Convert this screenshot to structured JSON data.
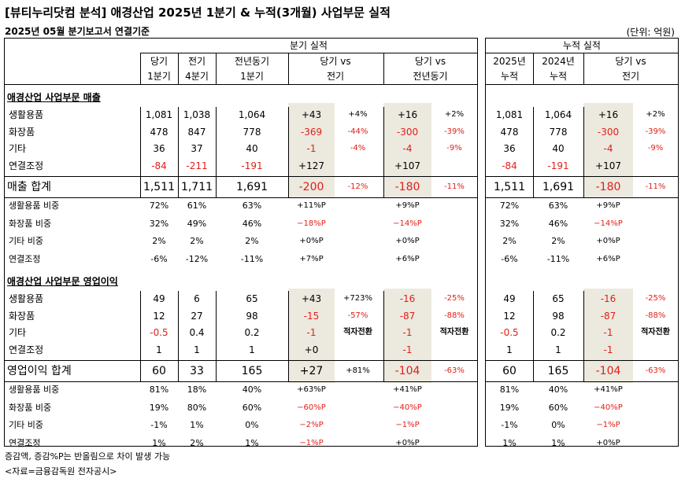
{
  "title": "[뷰티누리닷컴 분석] 애경산업 2025년 1분기 & 누적(3개월) 사업부문 실적",
  "subtitle": "2025년 05월 분기보고서 연결기준",
  "unit": "(단위: 억원)",
  "colors": {
    "negative": "#e1201a",
    "highlight": "#ece9df"
  },
  "headers": {
    "quarter_group": "분기 실적",
    "cum_group": "누적 실적",
    "cols": [
      {
        "l1": "당기",
        "l2": "1분기"
      },
      {
        "l1": "전기",
        "l2": "4분기"
      },
      {
        "l1": "전년동기",
        "l2": "1분기"
      },
      {
        "l1": "당기 vs",
        "l2": "전기"
      },
      {
        "l1": "당기 vs",
        "l2": "전년동기"
      }
    ],
    "cum_cols": [
      {
        "l1": "2025년",
        "l2": "누적"
      },
      {
        "l1": "2024년",
        "l2": "누적"
      },
      {
        "l1": "당기 vs",
        "l2": "전기"
      }
    ]
  },
  "sections": [
    {
      "title": "애경산업 사업부문 매출",
      "rows": [
        {
          "label": "생활용품",
          "q": [
            "1,081",
            "1,038",
            "1,064"
          ],
          "vs_prev": [
            "+43",
            "+4%"
          ],
          "vs_yoy": [
            "+16",
            "+2%"
          ],
          "cum": [
            "1,081",
            "1,064"
          ],
          "cum_vs": [
            "+16",
            "+2%"
          ]
        },
        {
          "label": "화장품",
          "q": [
            "478",
            "847",
            "778"
          ],
          "vs_prev": [
            "-369",
            "-44%"
          ],
          "vs_yoy": [
            "-300",
            "-39%"
          ],
          "cum": [
            "478",
            "778"
          ],
          "cum_vs": [
            "-300",
            "-39%"
          ]
        },
        {
          "label": "기타",
          "q": [
            "36",
            "37",
            "40"
          ],
          "vs_prev": [
            "-1",
            "-4%"
          ],
          "vs_yoy": [
            "-4",
            "-9%"
          ],
          "cum": [
            "36",
            "40"
          ],
          "cum_vs": [
            "-4",
            "-9%"
          ]
        },
        {
          "label": "연결조정",
          "q": [
            "-84",
            "-211",
            "-191"
          ],
          "vs_prev": [
            "+127",
            ""
          ],
          "vs_yoy": [
            "+107",
            ""
          ],
          "cum": [
            "-84",
            "-191"
          ],
          "cum_vs": [
            "+107",
            ""
          ]
        }
      ],
      "total": {
        "label": "매출 합계",
        "q": [
          "1,511",
          "1,711",
          "1,691"
        ],
        "vs_prev": [
          "-200",
          "-12%"
        ],
        "vs_yoy": [
          "-180",
          "-11%"
        ],
        "cum": [
          "1,511",
          "1,691"
        ],
        "cum_vs": [
          "-180",
          "-11%"
        ]
      },
      "ratios": [
        {
          "label": "생활용품 비중",
          "q": [
            "72%",
            "61%",
            "63%"
          ],
          "vs_prev": "+11%P",
          "vs_yoy": "+9%P",
          "cum": [
            "72%",
            "63%"
          ],
          "cum_vs": "+9%P"
        },
        {
          "label": "화장품 비중",
          "q": [
            "32%",
            "49%",
            "46%"
          ],
          "vs_prev": "−18%P",
          "vs_yoy": "−14%P",
          "cum": [
            "32%",
            "46%"
          ],
          "cum_vs": "−14%P"
        },
        {
          "label": "기타 비중",
          "q": [
            "2%",
            "2%",
            "2%"
          ],
          "vs_prev": "+0%P",
          "vs_yoy": "+0%P",
          "cum": [
            "2%",
            "2%"
          ],
          "cum_vs": "+0%P"
        },
        {
          "label": "연결조정",
          "q": [
            "-6%",
            "-12%",
            "-11%"
          ],
          "vs_prev": "+7%P",
          "vs_yoy": "+6%P",
          "cum": [
            "-6%",
            "-11%"
          ],
          "cum_vs": "+6%P"
        }
      ]
    },
    {
      "title": "애경산업 사업부문 영업이익",
      "rows": [
        {
          "label": "생활용품",
          "q": [
            "49",
            "6",
            "65"
          ],
          "vs_prev": [
            "+43",
            "+723%"
          ],
          "vs_yoy": [
            "-16",
            "-25%"
          ],
          "cum": [
            "49",
            "65"
          ],
          "cum_vs": [
            "-16",
            "-25%"
          ]
        },
        {
          "label": "화장품",
          "q": [
            "12",
            "27",
            "98"
          ],
          "vs_prev": [
            "-15",
            "-57%"
          ],
          "vs_yoy": [
            "-87",
            "-88%"
          ],
          "cum": [
            "12",
            "98"
          ],
          "cum_vs": [
            "-87",
            "-88%"
          ]
        },
        {
          "label": "기타",
          "q": [
            "-0.5",
            "0.4",
            "0.2"
          ],
          "vs_prev": [
            "-1",
            "적자전환"
          ],
          "vs_yoy": [
            "-1",
            "적자전환"
          ],
          "cum": [
            "-0.5",
            "0.2"
          ],
          "cum_vs": [
            "-1",
            "적자전환"
          ]
        },
        {
          "label": "연결조정",
          "q": [
            "1",
            "1",
            "1"
          ],
          "vs_prev": [
            "+0",
            ""
          ],
          "vs_yoy": [
            "-1",
            ""
          ],
          "cum": [
            "1",
            "1"
          ],
          "cum_vs": [
            "-1",
            ""
          ]
        }
      ],
      "total": {
        "label": "영업이익 합계",
        "q": [
          "60",
          "33",
          "165"
        ],
        "vs_prev": [
          "+27",
          "+81%"
        ],
        "vs_yoy": [
          "-104",
          "-63%"
        ],
        "cum": [
          "60",
          "165"
        ],
        "cum_vs": [
          "-104",
          "-63%"
        ]
      },
      "ratios": [
        {
          "label": "생활용품 비중",
          "q": [
            "81%",
            "18%",
            "40%"
          ],
          "vs_prev": "+63%P",
          "vs_yoy": "+41%P",
          "cum": [
            "81%",
            "40%"
          ],
          "cum_vs": "+41%P"
        },
        {
          "label": "화장품 비중",
          "q": [
            "19%",
            "80%",
            "60%"
          ],
          "vs_prev": "−60%P",
          "vs_yoy": "−40%P",
          "cum": [
            "19%",
            "60%"
          ],
          "cum_vs": "−40%P"
        },
        {
          "label": "기타 비중",
          "q": [
            "-1%",
            "1%",
            "0%"
          ],
          "vs_prev": "−2%P",
          "vs_yoy": "−1%P",
          "cum": [
            "-1%",
            "0%"
          ],
          "cum_vs": "−1%P"
        },
        {
          "label": "연결조정",
          "q": [
            "1%",
            "2%",
            "1%"
          ],
          "vs_prev": "−1%P",
          "vs_yoy": "+0%P",
          "cum": [
            "1%",
            "1%"
          ],
          "cum_vs": "+0%P"
        }
      ]
    }
  ],
  "notes": [
    "증감액, 증감%P는 반올림으로 차이 발생 가능",
    "<자료=금융감독원 전자공시>"
  ]
}
